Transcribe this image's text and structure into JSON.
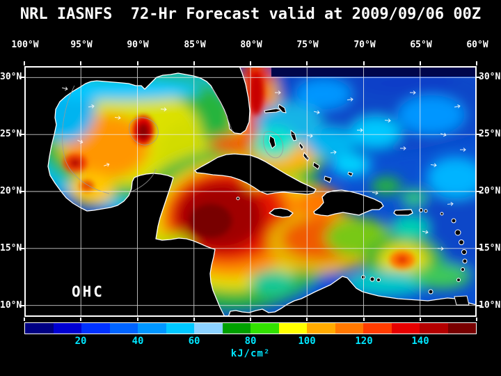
{
  "title": "NRL IASNFS  72-Hr Forecast valid at 2009/09/06 00Z",
  "map": {
    "lon_ticks": [
      "100°W",
      "95°W",
      "90°W",
      "85°W",
      "80°W",
      "75°W",
      "70°W",
      "65°W",
      "60°W"
    ],
    "lat_ticks_left": [
      "30°N",
      "25°N",
      "20°N",
      "15°N",
      "10°N"
    ],
    "lat_ticks_right": [
      "30°N",
      "25°N",
      "20°N",
      "15°N",
      "10°N"
    ],
    "field_label": "OHC"
  },
  "colorbar": {
    "tick_labels": [
      "20",
      "40",
      "60",
      "80",
      "100",
      "120",
      "140"
    ],
    "unit_label": "kJ/cm²",
    "segment_colors": [
      "#000082",
      "#0000d2",
      "#0032ff",
      "#0064ff",
      "#0096ff",
      "#00c8ff",
      "#8cd2ff",
      "#00a000",
      "#32e100",
      "#ffff00",
      "#ffaa00",
      "#ff7800",
      "#ff3c00",
      "#e60000",
      "#b40000",
      "#780000"
    ]
  },
  "colors": {
    "background": "#000000",
    "title_text": "#ffffff",
    "axis_text": "#ffffff",
    "colorbar_text": "#00e6ff",
    "grid_lines": "#f0f0f0",
    "coastline": "#ffffff",
    "land": "#000000"
  }
}
